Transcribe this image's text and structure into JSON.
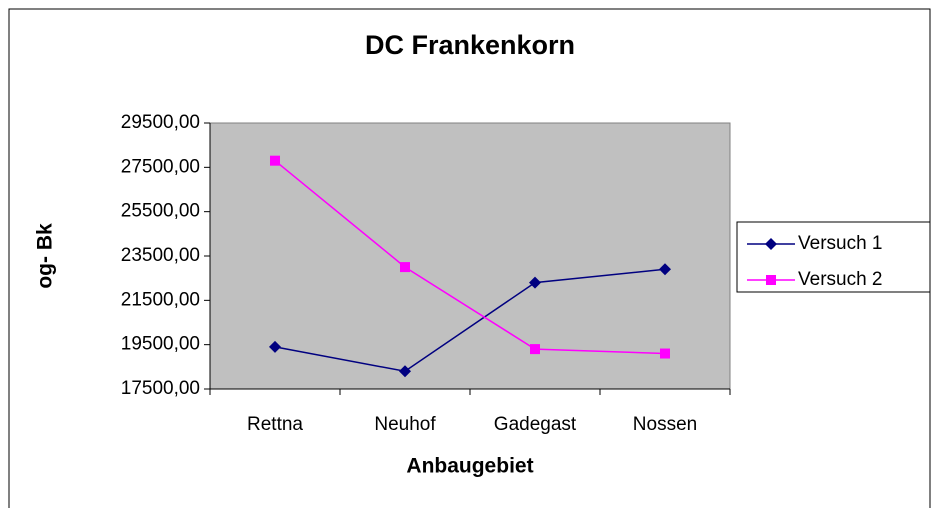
{
  "chart_data": {
    "type": "line",
    "title": "DC Frankenkorn",
    "x_label": "Anbaugebiet",
    "y_label": "og- Bk",
    "categories": [
      "Rettna",
      "Neuhof",
      "Gadegast",
      "Nossen"
    ],
    "series": [
      {
        "name": "Versuch 1",
        "color": "#000080",
        "marker": "diamond",
        "values": [
          19400,
          18300,
          22300,
          22900
        ]
      },
      {
        "name": "Versuch 2",
        "color": "#ff00ff",
        "marker": "square",
        "values": [
          27800,
          23000,
          19300,
          19100
        ]
      }
    ],
    "ylim": [
      17500,
      29500
    ],
    "yticks": [
      {
        "value": 17500,
        "label": "17500,00"
      },
      {
        "value": 19500,
        "label": "19500,00"
      },
      {
        "value": 21500,
        "label": "21500,00"
      },
      {
        "value": 23500,
        "label": "23500,00"
      },
      {
        "value": 25500,
        "label": "25500,00"
      },
      {
        "value": 27500,
        "label": "27500,00"
      },
      {
        "value": 29500,
        "label": "29500,00"
      }
    ],
    "grid": false,
    "legend": "right"
  }
}
